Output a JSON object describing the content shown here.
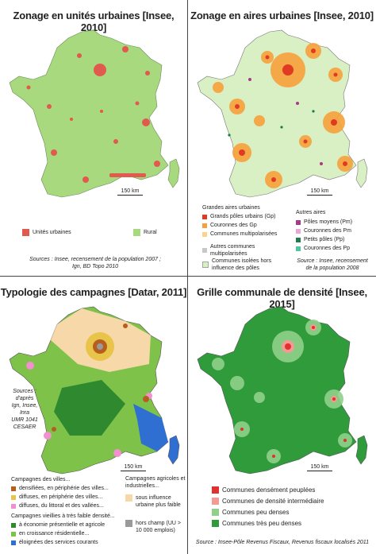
{
  "panels": [
    {
      "title": "Zonage en unités urbaines [Insee, 2010]",
      "scale": "150 km",
      "source_lines": [
        "Sources : Insee, recensement de la population 2007 ;",
        "Ign, BD Topo 2010"
      ],
      "legend": [
        {
          "label": "Unités urbaines",
          "color": "#e05a4e"
        },
        {
          "label": "Rural",
          "color": "#a8d97f"
        }
      ]
    },
    {
      "title": "Zonage en aires urbaines [Insee, 2010]",
      "scale": "150 km",
      "source_lines": [
        "Source : Insee, recensement",
        "de la population 2008"
      ],
      "legend_head_left": "Grandes aires urbaines",
      "legend_head_right": "Autres aires",
      "legend_left": [
        {
          "label": "Grands pôles urbains (Gp)",
          "color": "#e03b22"
        },
        {
          "label": "Couronnes des Gp",
          "color": "#f7a13a"
        },
        {
          "label": "Communes multipolarisées",
          "color": "#fbd38c"
        },
        {
          "label": "Autres communes multipolarisées",
          "color": "#c8c8c8"
        },
        {
          "label": "Communes isolées hors influence des pôles",
          "color": "#d9efc4"
        }
      ],
      "legend_right": [
        {
          "label": "Pôles moyens (Pm)",
          "color": "#a8388a"
        },
        {
          "label": "Couronnes des Pm",
          "color": "#e9a6d6"
        },
        {
          "label": "Petits pôles (Pp)",
          "color": "#1f7a4c"
        },
        {
          "label": "Couronnes des Pp",
          "color": "#4cc7a1"
        }
      ]
    },
    {
      "title": "Typologie des campagnes [Datar, 2011]",
      "scale": "150 km",
      "source_lines": [
        "Sources :",
        "d'après",
        "Ign, Insee,",
        "Inra",
        "UMR 1041",
        "CESAER"
      ],
      "legend_head_1": "Campagnes des villes...",
      "legend_group_1": [
        {
          "label": "densifiées, en périphérie des villes...",
          "color": "#b55e1e"
        },
        {
          "label": "diffuses, en périphérie des villes...",
          "color": "#e8c44a"
        },
        {
          "label": "diffuses, du littoral et des vallées...",
          "color": "#f28fce"
        }
      ],
      "legend_head_2": "Campagnes vieillies à très faible densité...",
      "legend_group_2": [
        {
          "label": "à économie présentielle et agricole",
          "color": "#2f8a2f"
        },
        {
          "label": "en croissance résidentielle...",
          "color": "#7fc24a"
        },
        {
          "label": "éloignées des services courants",
          "color": "#2f6fd1"
        }
      ],
      "legend_head_3": "Campagnes agricoles et industrielles...",
      "legend_group_3": [
        {
          "label": "sous influence urbaine plus faible",
          "color": "#f7d8a8"
        },
        {
          "label": "hors champ (UU > 10 000 emplois)",
          "color": "#9a9a9a"
        }
      ]
    },
    {
      "title": "Grille communale de densité [Insee, 2015]",
      "scale": "150 km",
      "source_lines": [
        "Source : Insee-Pôle Revenus Fiscaux, Revenus fiscaux localisés 2011"
      ],
      "legend": [
        {
          "label": "Communes densément peuplées",
          "color": "#e0312f"
        },
        {
          "label": "Communes de densité intermédiaire",
          "color": "#f39b93"
        },
        {
          "label": "Communes peu denses",
          "color": "#8fd18a"
        },
        {
          "label": "Communes très peu denses",
          "color": "#2f9b3a"
        }
      ]
    }
  ]
}
